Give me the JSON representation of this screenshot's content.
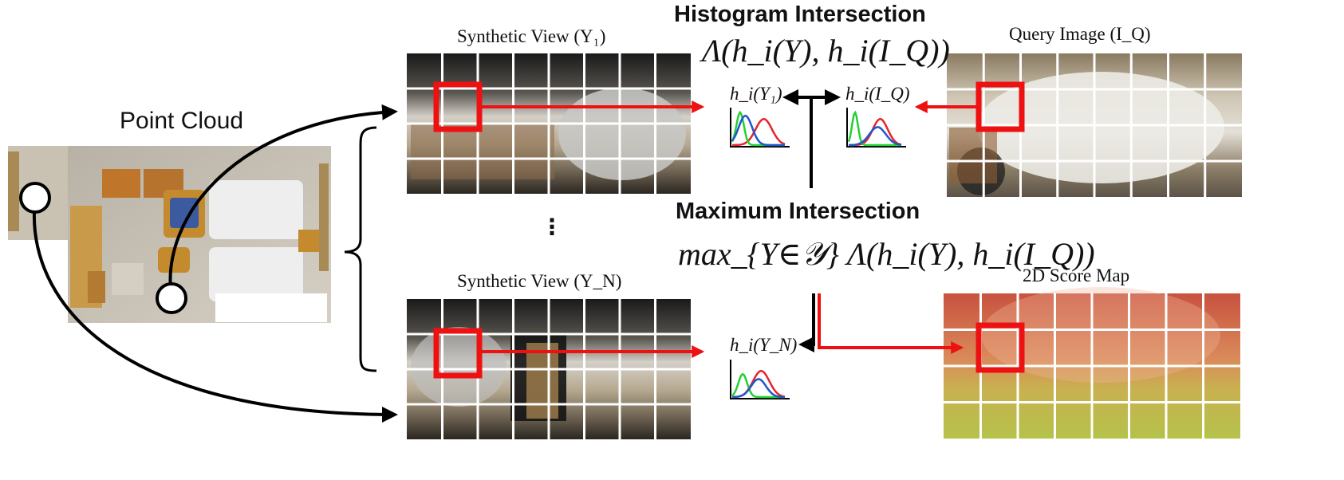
{
  "labels": {
    "point_cloud": "Point Cloud",
    "synthetic_view_1": "Synthetic View (Y₁)",
    "synthetic_view_n": "Synthetic View (Y_N)",
    "query_image": "Query Image (I_Q)",
    "score_map": "2D Score Map",
    "histogram_intersection": "Histogram Intersection",
    "maximum_intersection": "Maximum Intersection",
    "ellipsis": "⋮"
  },
  "formulas": {
    "intersection": "Λ(h_i(Y), h_i(I_Q))",
    "max_intersection": "max_{Y∈𝒴} Λ(h_i(Y), h_i(I_Q))",
    "hist_y1": "h_i(Y₁)",
    "hist_iq": "h_i(I_Q)",
    "hist_yn": "h_i(Y_N)"
  },
  "colors": {
    "highlight_red": "#ee1111",
    "arrow_black": "#000000",
    "hist_red": "#e8232a",
    "hist_green": "#22d035",
    "hist_blue": "#2255cc",
    "score_high": "#c8523f",
    "score_mid": "#d8a055",
    "score_low": "#b8c050"
  },
  "grid": {
    "cols": 8,
    "rows": 4
  }
}
